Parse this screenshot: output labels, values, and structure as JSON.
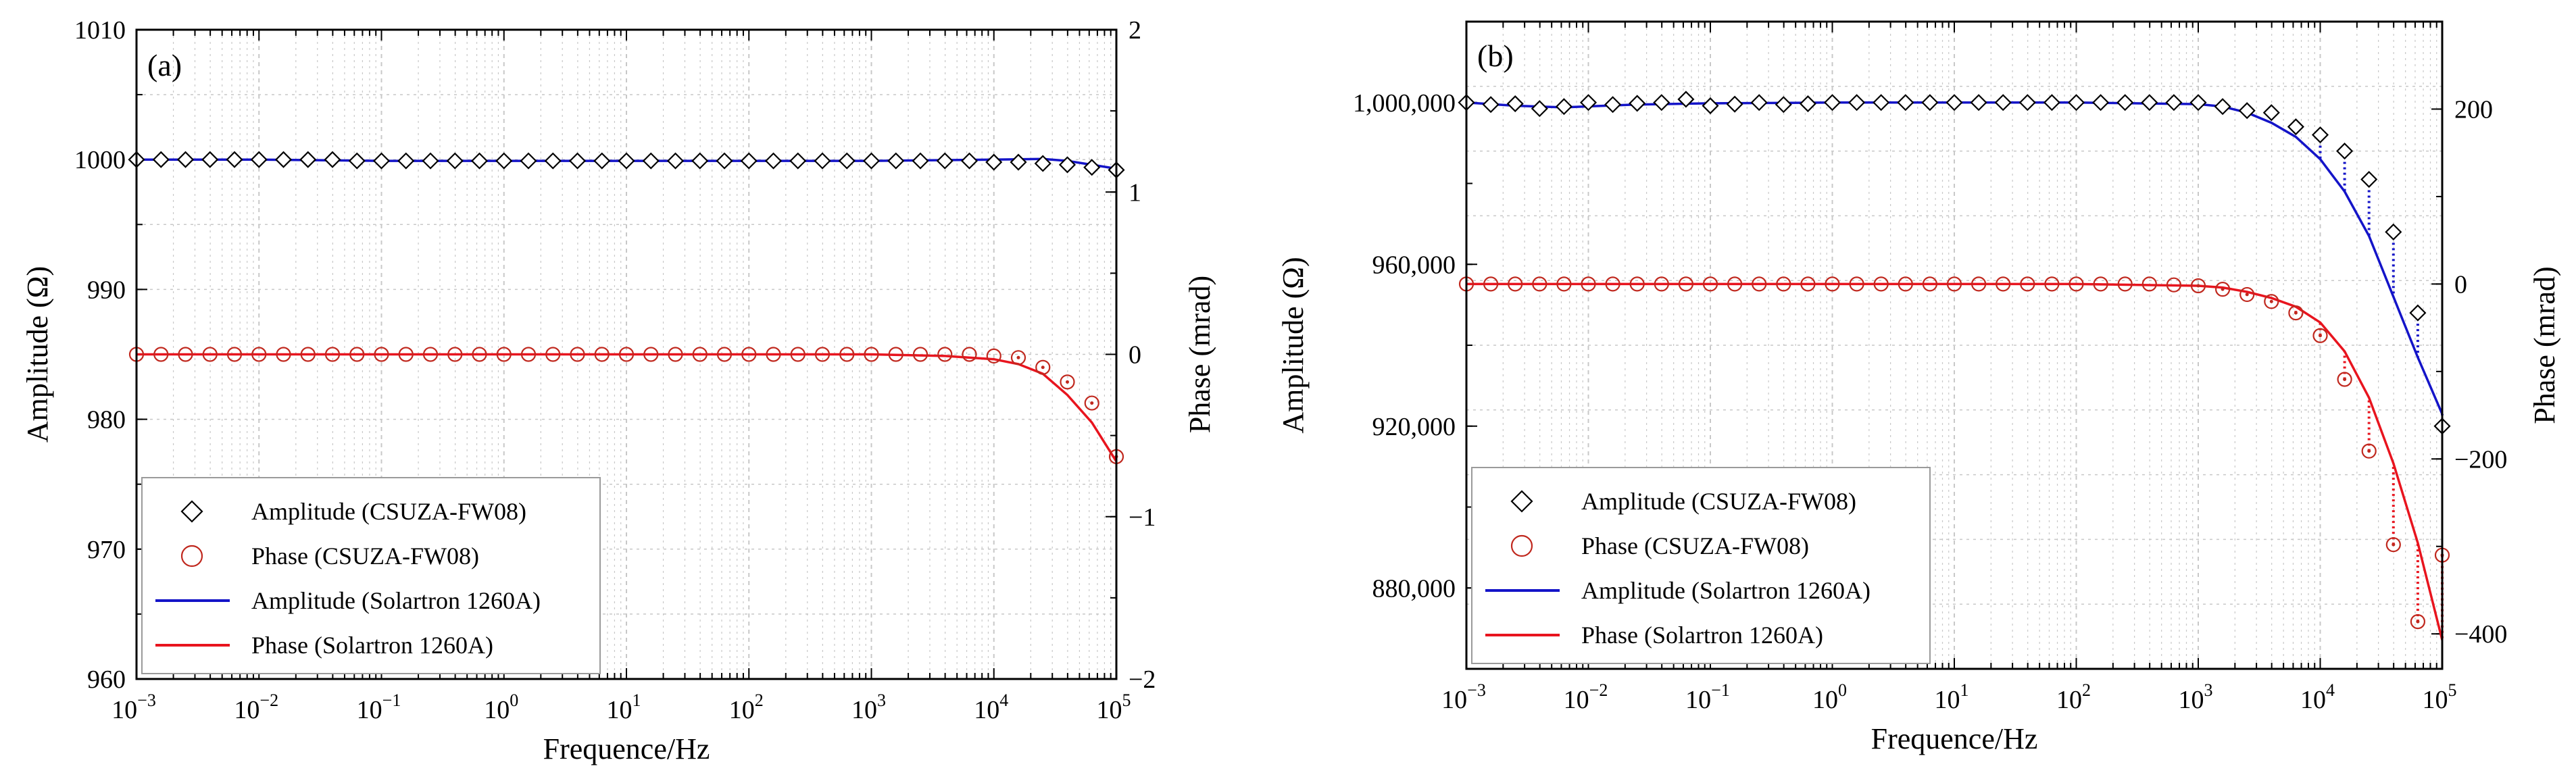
{
  "colors": {
    "amplitude_line": "#1414c8",
    "phase_line": "#e8141e",
    "phase_marker": "#c0281e",
    "amplitude_marker": "#000000",
    "grid": "#c8c8c8"
  },
  "xtick_labels": [
    {
      "base": "10",
      "exp": "−3"
    },
    {
      "base": "10",
      "exp": "−2"
    },
    {
      "base": "10",
      "exp": "−1"
    },
    {
      "base": "10",
      "exp": "0"
    },
    {
      "base": "10",
      "exp": "1"
    },
    {
      "base": "10",
      "exp": "2"
    },
    {
      "base": "10",
      "exp": "3"
    },
    {
      "base": "10",
      "exp": "4"
    },
    {
      "base": "10",
      "exp": "5"
    }
  ],
  "chart_data": [
    {
      "type": "line",
      "panel_label": "(a)",
      "xlabel": "Frequence/Hz",
      "ylabel": "Amplitude (Ω)",
      "y2label": "Phase (mrad)",
      "xscale": "log",
      "xlim": [
        0.001,
        100000
      ],
      "ylim": [
        960,
        1010
      ],
      "y2lim": [
        -2,
        2
      ],
      "yticks": [
        960,
        970,
        980,
        990,
        1000,
        1010
      ],
      "ytick_labels": [
        "960",
        "970",
        "980",
        "990",
        "1000",
        "1010"
      ],
      "y2ticks": [
        -2,
        -1,
        0,
        1,
        2
      ],
      "y2tick_labels": [
        "−2",
        "−1",
        "0",
        "1",
        "2"
      ],
      "grid": true,
      "legend_position": "bottom-left",
      "legend": [
        {
          "label": "Amplitude (CSUZA-FW08)",
          "kind": "diamond"
        },
        {
          "label": "Phase (CSUZA-FW08)",
          "kind": "circle"
        },
        {
          "label": "Amplitude (Solartron 1260A)",
          "kind": "blue-line"
        },
        {
          "label": "Phase (Solartron 1260A)",
          "kind": "red-line"
        }
      ],
      "series": [
        {
          "name": "Amplitude (CSUZA-FW08)",
          "axis": "left",
          "style": "diamond",
          "x": [
            -3,
            -2.8,
            -2.6,
            -2.4,
            -2.2,
            -2,
            -1.8,
            -1.6,
            -1.4,
            -1.2,
            -1,
            -0.8,
            -0.6,
            -0.4,
            -0.2,
            0,
            0.2,
            0.4,
            0.6,
            0.8,
            1,
            1.2,
            1.4,
            1.6,
            1.8,
            2,
            2.2,
            2.4,
            2.6,
            2.8,
            3,
            3.2,
            3.4,
            3.6,
            3.8,
            4,
            4.2,
            4.4,
            4.6,
            4.8,
            5
          ],
          "y": [
            1000,
            1000,
            1000,
            1000,
            1000,
            1000,
            1000,
            1000,
            1000,
            999.9,
            999.9,
            999.9,
            999.9,
            999.9,
            999.9,
            999.9,
            999.9,
            999.9,
            999.9,
            999.9,
            999.9,
            999.9,
            999.9,
            999.9,
            999.9,
            999.9,
            999.9,
            999.9,
            999.9,
            999.9,
            999.9,
            999.9,
            999.9,
            999.9,
            999.9,
            999.8,
            999.8,
            999.7,
            999.6,
            999.4,
            999.2
          ]
        },
        {
          "name": "Phase (CSUZA-FW08)",
          "axis": "right",
          "style": "circle",
          "x": [
            -3,
            -2.8,
            -2.6,
            -2.4,
            -2.2,
            -2,
            -1.8,
            -1.6,
            -1.4,
            -1.2,
            -1,
            -0.8,
            -0.6,
            -0.4,
            -0.2,
            0,
            0.2,
            0.4,
            0.6,
            0.8,
            1,
            1.2,
            1.4,
            1.6,
            1.8,
            2,
            2.2,
            2.4,
            2.6,
            2.8,
            3,
            3.2,
            3.4,
            3.6,
            3.8,
            4,
            4.2,
            4.4,
            4.6,
            4.8,
            5
          ],
          "y": [
            0,
            0,
            0,
            0,
            0,
            0,
            0,
            0,
            0,
            0,
            0,
            0,
            0,
            0,
            0,
            0,
            0,
            0,
            0,
            0,
            0,
            0,
            0,
            0,
            0,
            0,
            0,
            0,
            0,
            0,
            0,
            0,
            0,
            0,
            0,
            -0.01,
            -0.02,
            -0.08,
            -0.17,
            -0.3,
            -0.63
          ]
        },
        {
          "name": "Amplitude (Solartron 1260A)",
          "axis": "left",
          "style": "line",
          "x": [
            -3,
            -2,
            -1,
            0,
            1,
            2,
            3,
            4,
            4.4,
            4.6,
            4.8,
            5
          ],
          "y": [
            1000,
            1000,
            999.9,
            999.9,
            999.9,
            999.9,
            999.9,
            1000,
            1000.05,
            999.9,
            999.6,
            999.3
          ]
        },
        {
          "name": "Phase (Solartron 1260A)",
          "axis": "right",
          "style": "line",
          "x": [
            -3,
            -2,
            -1,
            0,
            1,
            2,
            3,
            3.6,
            4,
            4.2,
            4.4,
            4.6,
            4.8,
            5
          ],
          "y": [
            0,
            0,
            0,
            0,
            0,
            0,
            0,
            -0.01,
            -0.03,
            -0.06,
            -0.12,
            -0.25,
            -0.42,
            -0.66
          ]
        }
      ]
    },
    {
      "type": "line",
      "panel_label": "(b)",
      "xlabel": "Frequence/Hz",
      "ylabel": "Amplitude (Ω)",
      "y2label": "Phase (mrad)",
      "xscale": "log",
      "xlim": [
        0.001,
        100000
      ],
      "ylim": [
        860000,
        1020000
      ],
      "y2lim": [
        -440,
        300
      ],
      "yticks": [
        880000,
        920000,
        960000,
        1000000
      ],
      "ytick_labels": [
        "880,000",
        "920,000",
        "960,000",
        "1,000,000"
      ],
      "y2ticks": [
        -400,
        -200,
        0,
        200
      ],
      "y2tick_labels": [
        "−400",
        "−200",
        "0",
        "200"
      ],
      "grid": true,
      "legend_position": "bottom-left",
      "legend": [
        {
          "label": "Amplitude (CSUZA-FW08)",
          "kind": "diamond"
        },
        {
          "label": "Phase (CSUZA-FW08)",
          "kind": "circle"
        },
        {
          "label": "Amplitude (Solartron 1260A)",
          "kind": "blue-line"
        },
        {
          "label": "Phase (Solartron 1260A)",
          "kind": "red-line"
        }
      ],
      "series": [
        {
          "name": "Amplitude (CSUZA-FW08)",
          "axis": "left",
          "style": "diamond",
          "x": [
            -3,
            -2.8,
            -2.6,
            -2.4,
            -2.2,
            -2,
            -1.8,
            -1.6,
            -1.4,
            -1.2,
            -1,
            -0.8,
            -0.6,
            -0.4,
            -0.2,
            0,
            0.2,
            0.4,
            0.6,
            0.8,
            1,
            1.2,
            1.4,
            1.6,
            1.8,
            2,
            2.2,
            2.4,
            2.6,
            2.8,
            3,
            3.2,
            3.4,
            3.6,
            3.8,
            4,
            4.2,
            4.4,
            4.6,
            4.8,
            5
          ],
          "y": [
            1000000,
            999500,
            999700,
            998500,
            999000,
            1000000,
            999500,
            999800,
            1000000,
            1000800,
            999200,
            999600,
            1000000,
            999500,
            999700,
            1000000,
            1000000,
            1000000,
            1000000,
            1000000,
            1000000,
            1000000,
            1000000,
            1000000,
            1000000,
            1000000,
            1000000,
            1000000,
            1000000,
            1000000,
            1000000,
            999000,
            998000,
            997500,
            994000,
            992000,
            988000,
            981000,
            968000,
            948000,
            920000
          ]
        },
        {
          "name": "Phase (CSUZA-FW08)",
          "axis": "right",
          "style": "circle",
          "x": [
            -3,
            -2.8,
            -2.6,
            -2.4,
            -2.2,
            -2,
            -1.8,
            -1.6,
            -1.4,
            -1.2,
            -1,
            -0.8,
            -0.6,
            -0.4,
            -0.2,
            0,
            0.2,
            0.4,
            0.6,
            0.8,
            1,
            1.2,
            1.4,
            1.6,
            1.8,
            2,
            2.2,
            2.4,
            2.6,
            2.8,
            3,
            3.2,
            3.4,
            3.6,
            3.8,
            4,
            4.2,
            4.4,
            4.6,
            4.8,
            5
          ],
          "y": [
            0,
            0,
            0,
            0,
            0,
            0,
            0,
            0,
            0,
            0,
            0,
            0,
            0,
            0,
            0,
            0,
            0,
            0,
            0,
            0,
            0,
            0,
            0,
            0,
            0,
            0,
            0,
            0,
            0,
            -1,
            -2,
            -6,
            -12,
            -20,
            -33,
            -59,
            -109,
            -191,
            -298,
            -386,
            -310
          ]
        },
        {
          "name": "Amplitude (Solartron 1260A)",
          "axis": "left",
          "style": "line",
          "x": [
            -3,
            -2.6,
            -2.2,
            -1.6,
            -1,
            0,
            1,
            2,
            3,
            3.2,
            3.4,
            3.6,
            3.8,
            4,
            4.2,
            4.4,
            4.6,
            4.8,
            5
          ],
          "y": [
            1000000,
            999200,
            998800,
            999500,
            999800,
            1000000,
            1000000,
            1000000,
            999600,
            999000,
            997500,
            995000,
            991500,
            986000,
            978000,
            967000,
            952000,
            937000,
            923000
          ]
        },
        {
          "name": "Phase (Solartron 1260A)",
          "axis": "right",
          "style": "line",
          "x": [
            -3,
            -2,
            -1,
            0,
            1,
            2,
            3,
            3.2,
            3.4,
            3.6,
            3.8,
            4,
            4.2,
            4.4,
            4.6,
            4.8,
            5
          ],
          "y": [
            0,
            0,
            0,
            0,
            0,
            0,
            -2,
            -4,
            -9,
            -16,
            -26,
            -44,
            -77,
            -130,
            -205,
            -296,
            -407
          ]
        }
      ]
    }
  ]
}
